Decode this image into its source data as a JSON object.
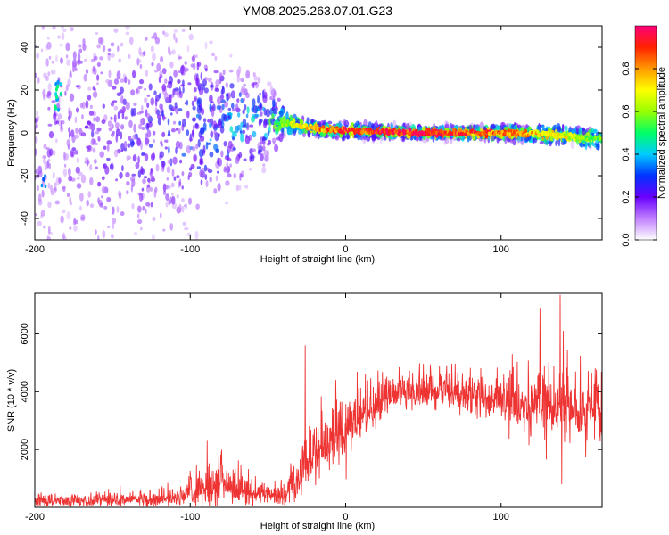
{
  "title": "YM08.2025.263.07.01.G23",
  "chart_data": [
    {
      "type": "heatmap",
      "title": "YM08.2025.263.07.01.G23",
      "xlabel": "Height of straight line (km)",
      "ylabel": "Frequency (Hz)",
      "xlim": [
        -200,
        165
      ],
      "ylim": [
        -50,
        50
      ],
      "x_ticks": [
        -200,
        -100,
        0,
        100
      ],
      "y_ticks": [
        -40,
        -20,
        0,
        20,
        40
      ],
      "colorbar": {
        "label": "Normalized spectral amplitude",
        "range": [
          0,
          1
        ],
        "ticks": [
          0.0,
          0.2,
          0.4,
          0.6,
          0.8
        ],
        "stops": [
          "#ffffff",
          "#c080ff",
          "#6a00ff",
          "#0033ff",
          "#00ccff",
          "#00ff66",
          "#99ff00",
          "#ffff00",
          "#ff9900",
          "#ff2200",
          "#ff0077"
        ]
      },
      "description_points": [
        {
          "x": -200,
          "f": 0,
          "spread": 45,
          "amp": 0.15
        },
        {
          "x": -120,
          "f": 0,
          "spread": 35,
          "amp": 0.25
        },
        {
          "x": -80,
          "f": 3,
          "spread": 20,
          "amp": 0.35
        },
        {
          "x": -50,
          "f": 5,
          "spread": 10,
          "amp": 0.45
        },
        {
          "x": -35,
          "f": 4,
          "spread": 3,
          "amp": 0.65
        },
        {
          "x": -20,
          "f": 2,
          "spread": 2,
          "amp": 0.8
        },
        {
          "x": 0,
          "f": 1,
          "spread": 2,
          "amp": 0.9
        },
        {
          "x": 50,
          "f": 0,
          "spread": 1.5,
          "amp": 0.95
        },
        {
          "x": 100,
          "f": 0,
          "spread": 2,
          "amp": 0.85
        },
        {
          "x": 140,
          "f": -1,
          "spread": 3,
          "amp": 0.7
        },
        {
          "x": 165,
          "f": -3,
          "spread": 4,
          "amp": 0.55
        }
      ]
    },
    {
      "type": "line",
      "xlabel": "Height of straight line (km)",
      "ylabel": "SNR (10 * v/v)",
      "xlim": [
        -200,
        165
      ],
      "ylim": [
        0,
        7400
      ],
      "x_ticks": [
        -200,
        -100,
        0,
        100
      ],
      "y_ticks": [
        2000,
        4000,
        6000
      ],
      "color": "#ee3333",
      "envelope": [
        {
          "x": -200,
          "mean": 200,
          "noise": 150
        },
        {
          "x": -150,
          "mean": 250,
          "noise": 150
        },
        {
          "x": -110,
          "mean": 350,
          "noise": 200
        },
        {
          "x": -95,
          "mean": 600,
          "noise": 350
        },
        {
          "x": -80,
          "mean": 900,
          "noise": 600
        },
        {
          "x": -70,
          "mean": 550,
          "noise": 400
        },
        {
          "x": -40,
          "mean": 400,
          "noise": 200
        },
        {
          "x": -32,
          "mean": 700,
          "noise": 400
        },
        {
          "x": -25,
          "mean": 1500,
          "noise": 700
        },
        {
          "x": -10,
          "mean": 2300,
          "noise": 700
        },
        {
          "x": 0,
          "mean": 2700,
          "noise": 700
        },
        {
          "x": 15,
          "mean": 3400,
          "noise": 600
        },
        {
          "x": 30,
          "mean": 3900,
          "noise": 400
        },
        {
          "x": 60,
          "mean": 4050,
          "noise": 400
        },
        {
          "x": 90,
          "mean": 3850,
          "noise": 550
        },
        {
          "x": 120,
          "mean": 3600,
          "noise": 700
        },
        {
          "x": 165,
          "mean": 3400,
          "noise": 800
        }
      ],
      "spikes": [
        {
          "x": -89,
          "y": 2300
        },
        {
          "x": -80,
          "y": 1900
        },
        {
          "x": -26,
          "y": 5600
        },
        {
          "x": 125,
          "y": 6900
        },
        {
          "x": 138,
          "y": 7350
        },
        {
          "x": 140,
          "y": 6100
        },
        {
          "x": 139,
          "y": 800
        }
      ]
    }
  ]
}
